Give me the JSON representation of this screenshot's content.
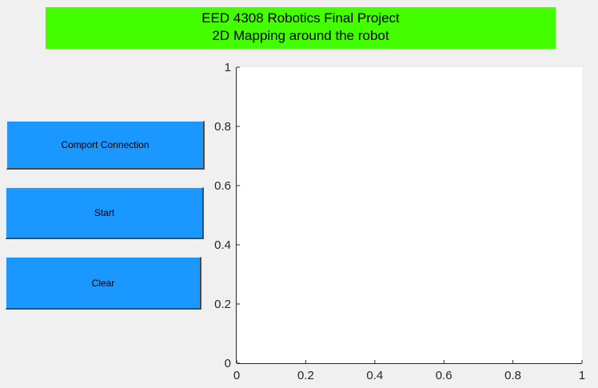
{
  "window": {
    "title_line1": "EED 4308 Robotics Final Project",
    "title_line2": "2D Mapping around the robot",
    "background_color": "#f0f0f0",
    "banner_color": "#44ff00"
  },
  "buttons": {
    "comport_label": "Comport Connection",
    "start_label": "Start",
    "clear_label": "Clear",
    "color": "#1a98ff"
  },
  "plot": {
    "x_ticks": [
      "0",
      "0.2",
      "0.4",
      "0.6",
      "0.8",
      "1"
    ],
    "y_ticks": [
      "0",
      "0.2",
      "0.4",
      "0.6",
      "0.8",
      "1"
    ],
    "xlim": [
      0,
      1
    ],
    "ylim": [
      0,
      1
    ],
    "grid": false
  },
  "chart_data": {
    "type": "scatter",
    "title": "",
    "xlabel": "",
    "ylabel": "",
    "xlim": [
      0,
      1
    ],
    "ylim": [
      0,
      1
    ],
    "series": []
  }
}
